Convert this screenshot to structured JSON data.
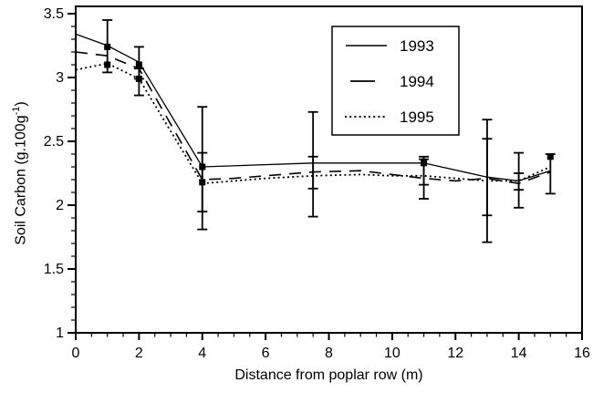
{
  "figure": {
    "background": "#ffffff",
    "ink": "#000000"
  },
  "chart_data": {
    "type": "line",
    "title": "",
    "xlabel": "Distance from poplar row (m)",
    "ylabel_prefix": "Soil Carbon (g.100g",
    "ylabel_sup": "-1",
    "ylabel_suffix": ")",
    "xlim": [
      0,
      16
    ],
    "ylim": [
      1,
      3.5
    ],
    "x_ticks_major": [
      0,
      2,
      4,
      6,
      8,
      10,
      12,
      14,
      16
    ],
    "x_ticks_minor_step": 0.5,
    "y_ticks_major": [
      1,
      1.5,
      2,
      2.5,
      3,
      3.5
    ],
    "y_ticks_minor_step": 0.1,
    "grid": false,
    "legend_position": "inside upper middle-right",
    "series": [
      {
        "name": "1993",
        "style": "solid",
        "points": [
          [
            0,
            3.34
          ],
          [
            1,
            3.25
          ],
          [
            2,
            3.12
          ],
          [
            4,
            2.3
          ],
          [
            7.5,
            2.33
          ],
          [
            11,
            2.33
          ],
          [
            13,
            2.22
          ],
          [
            14,
            2.19
          ],
          [
            15,
            2.27
          ]
        ]
      },
      {
        "name": "1994",
        "style": "long-dash",
        "points": [
          [
            0,
            3.2
          ],
          [
            1,
            3.17
          ],
          [
            2,
            3.07
          ],
          [
            4,
            2.2
          ],
          [
            5,
            2.21
          ],
          [
            6,
            2.23
          ],
          [
            7.5,
            2.26
          ],
          [
            9,
            2.27
          ],
          [
            10,
            2.24
          ],
          [
            11,
            2.21
          ],
          [
            12,
            2.19
          ],
          [
            13,
            2.21
          ],
          [
            14,
            2.17
          ],
          [
            15,
            2.26
          ]
        ]
      },
      {
        "name": "1995",
        "style": "dot",
        "points": [
          [
            0,
            3.06
          ],
          [
            1,
            3.11
          ],
          [
            2,
            2.99
          ],
          [
            4,
            2.17
          ],
          [
            5,
            2.19
          ],
          [
            6,
            2.21
          ],
          [
            7.5,
            2.23
          ],
          [
            9,
            2.24
          ],
          [
            10,
            2.23
          ],
          [
            11,
            2.23
          ],
          [
            12,
            2.21
          ],
          [
            13,
            2.19
          ],
          [
            14,
            2.19
          ],
          [
            15,
            2.3
          ]
        ]
      }
    ],
    "error_bars": [
      {
        "x": 1,
        "lo": 3.04,
        "hi": 3.45
      },
      {
        "x": 2,
        "lo": 2.99,
        "hi": 3.24
      },
      {
        "x": 2,
        "lo": 2.86,
        "hi": 3.07
      },
      {
        "x": 4,
        "lo": 1.81,
        "hi": 2.77
      },
      {
        "x": 4,
        "lo": 1.95,
        "hi": 2.41
      },
      {
        "x": 7.5,
        "lo": 1.91,
        "hi": 2.73
      },
      {
        "x": 7.5,
        "lo": 2.13,
        "hi": 2.38
      },
      {
        "x": 11,
        "lo": 2.05,
        "hi": 2.36
      },
      {
        "x": 11,
        "lo": 2.16,
        "hi": 2.38
      },
      {
        "x": 13,
        "lo": 1.71,
        "hi": 2.67
      },
      {
        "x": 13,
        "lo": 1.92,
        "hi": 2.52
      },
      {
        "x": 14,
        "lo": 1.98,
        "hi": 2.41
      },
      {
        "x": 14,
        "lo": 2.12,
        "hi": 2.25
      },
      {
        "x": 15,
        "lo": 2.09,
        "hi": 2.4
      }
    ],
    "point_markers": [
      {
        "x": 1,
        "y": 3.24
      },
      {
        "x": 1,
        "y": 3.1
      },
      {
        "x": 2,
        "y": 3.1
      },
      {
        "x": 2,
        "y": 2.99
      },
      {
        "x": 4,
        "y": 2.3
      },
      {
        "x": 4,
        "y": 2.18
      },
      {
        "x": 11,
        "y": 2.33
      },
      {
        "x": 15,
        "y": 2.38
      }
    ],
    "legend_entries": [
      "1993",
      "1994",
      "1995"
    ]
  }
}
